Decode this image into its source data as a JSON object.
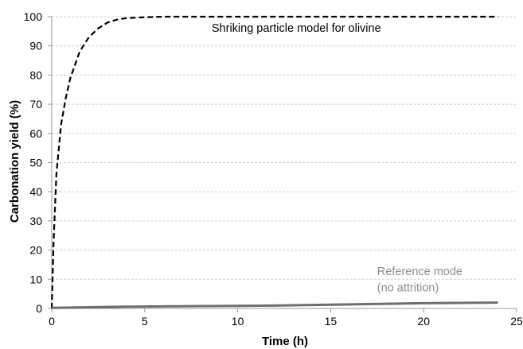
{
  "chart_data": {
    "type": "line",
    "title": "",
    "xlabel": "Time (h)",
    "ylabel": "Carbonation yield (%)",
    "xlim": [
      0,
      25
    ],
    "ylim": [
      0,
      100
    ],
    "x_ticks": [
      0,
      5,
      10,
      15,
      20,
      25
    ],
    "y_ticks": [
      0,
      10,
      20,
      30,
      40,
      50,
      60,
      70,
      80,
      90,
      100
    ],
    "x_tick_labels": [
      "0",
      "5",
      "10",
      "15",
      "20",
      "25"
    ],
    "y_tick_labels": [
      "0",
      "10",
      "20",
      "30",
      "40",
      "50",
      "60",
      "70",
      "80",
      "90",
      "100"
    ],
    "grid": {
      "horizontal": true,
      "vertical": false,
      "style": "dashed"
    },
    "legend": "none",
    "series": [
      {
        "style": "dashed",
        "color": "#000000",
        "x": [
          0,
          0.1,
          0.25,
          0.5,
          0.75,
          1,
          1.5,
          2,
          2.5,
          3,
          3.5,
          4,
          5,
          6,
          8,
          10,
          15,
          20,
          24
        ],
        "y": [
          0,
          23,
          46,
          63,
          72,
          79,
          88,
          93,
          96,
          98,
          99,
          99.5,
          99.8,
          100,
          100,
          100,
          100,
          100,
          100
        ]
      },
      {
        "style": "solid",
        "color": "#6e6e6e",
        "x": [
          0,
          2,
          4,
          6,
          8,
          10,
          12,
          14,
          16,
          18,
          20,
          22,
          24
        ],
        "y": [
          0.2,
          0.4,
          0.6,
          0.7,
          0.8,
          0.9,
          1.0,
          1.2,
          1.4,
          1.6,
          1.8,
          1.9,
          2.0
        ]
      }
    ],
    "annotations": [
      {
        "text": "Shriking particle model for olivine",
        "x": 8.6,
        "y": 94.8,
        "color": "#000000"
      },
      {
        "text": "Reference mode",
        "x": 17.5,
        "y": 11.5,
        "color": "#8c8c8c"
      },
      {
        "text": "(no attrition)",
        "x": 17.5,
        "y": 5.8,
        "color": "#8c8c8c"
      }
    ]
  }
}
